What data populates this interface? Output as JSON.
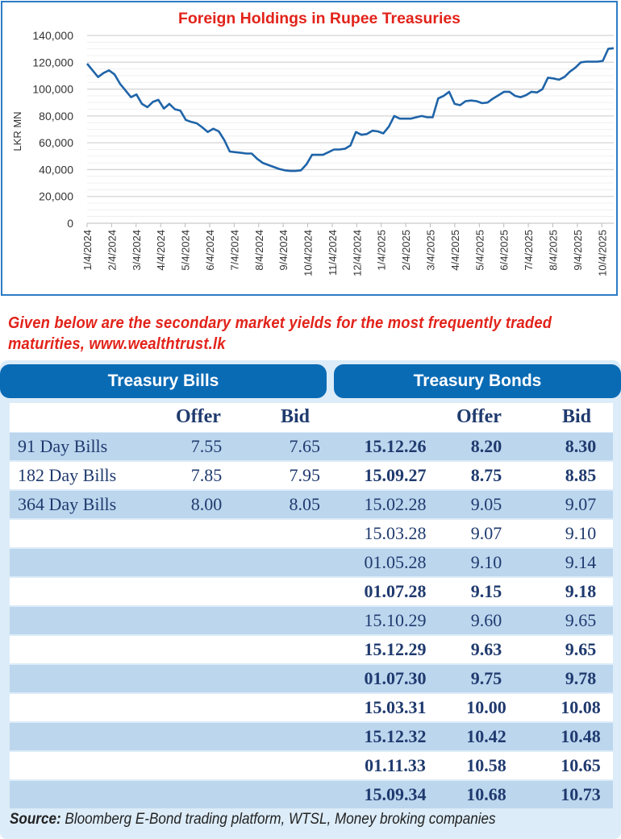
{
  "chart_data": {
    "type": "line",
    "title": "Foreign Holdings in Rupee Treasuries",
    "xlabel": "",
    "ylabel": "LKR MN",
    "ylim": [
      0,
      140000
    ],
    "yticks": [
      0,
      20000,
      40000,
      60000,
      80000,
      100000,
      120000,
      140000
    ],
    "ytick_labels": [
      "0",
      "20,000",
      "40,000",
      "60,000",
      "80,000",
      "100,000",
      "120,000",
      "140,000"
    ],
    "xtick_labels": [
      "1/4/2024",
      "2/4/2024",
      "3/4/2024",
      "4/4/2024",
      "5/4/2024",
      "6/4/2024",
      "7/4/2024",
      "8/4/2024",
      "9/4/2024",
      "10/4/2024",
      "11/4/2024",
      "12/4/2024",
      "1/4/2025",
      "2/4/2025",
      "3/4/2025",
      "4/4/2025",
      "5/4/2025",
      "6/4/2025",
      "7/4/2025",
      "8/4/2025",
      "9/4/2025",
      "10/4/2025"
    ],
    "x_span_months": 21.7,
    "grid": true,
    "legend": "none",
    "color": "#1f64a8",
    "series": [
      {
        "name": "Foreign Holdings",
        "values": [
          119000,
          114000,
          109000,
          112000,
          114000,
          111000,
          104000,
          99000,
          94000,
          96000,
          89000,
          86500,
          90500,
          92000,
          85500,
          89000,
          85000,
          84000,
          77000,
          75500,
          74500,
          71500,
          68000,
          70500,
          68500,
          62000,
          53500,
          53000,
          52500,
          52000,
          52000,
          48000,
          45000,
          43500,
          42000,
          40500,
          39500,
          39000,
          39000,
          39500,
          44000,
          51000,
          51000,
          51000,
          53000,
          55000,
          55000,
          55500,
          58000,
          68000,
          66000,
          66500,
          69000,
          68500,
          67000,
          72000,
          80000,
          78000,
          78000,
          78000,
          79000,
          80000,
          79000,
          79000,
          93000,
          95000,
          98000,
          89000,
          88000,
          91000,
          91500,
          91000,
          89500,
          90000,
          93000,
          95500,
          98000,
          98000,
          95000,
          94000,
          95500,
          98000,
          97500,
          100000,
          108500,
          108000,
          107000,
          109000,
          113000,
          116000,
          120000,
          120500,
          120500,
          120500,
          121000,
          130000,
          130500
        ]
      }
    ]
  },
  "intro_text": "Given below are the secondary market yields for the most frequently traded maturities, www.wealthtrust.lk",
  "bills": {
    "title": "Treasury Bills",
    "offer_label": "Offer",
    "bid_label": "Bid",
    "rows": [
      {
        "name": "91 Day Bills",
        "offer": "7.55",
        "bid": "7.65"
      },
      {
        "name": "182 Day Bills",
        "offer": "7.85",
        "bid": "7.95"
      },
      {
        "name": "364 Day Bills",
        "offer": "8.00",
        "bid": "8.05"
      }
    ]
  },
  "bonds": {
    "title": "Treasury Bonds",
    "offer_label": "Offer",
    "bid_label": "Bid",
    "rows": [
      {
        "maturity": "15.12.26",
        "offer": "8.20",
        "bid": "8.30",
        "bold": true
      },
      {
        "maturity": "15.09.27",
        "offer": "8.75",
        "bid": "8.85",
        "bold": true
      },
      {
        "maturity": "15.02.28",
        "offer": "9.05",
        "bid": "9.07",
        "bold": false
      },
      {
        "maturity": "15.03.28",
        "offer": "9.07",
        "bid": "9.10",
        "bold": false
      },
      {
        "maturity": "01.05.28",
        "offer": "9.10",
        "bid": "9.14",
        "bold": false
      },
      {
        "maturity": "01.07.28",
        "offer": "9.15",
        "bid": "9.18",
        "bold": true
      },
      {
        "maturity": "15.10.29",
        "offer": "9.60",
        "bid": "9.65",
        "bold": false
      },
      {
        "maturity": "15.12.29",
        "offer": "9.63",
        "bid": "9.65",
        "bold": true
      },
      {
        "maturity": "01.07.30",
        "offer": "9.75",
        "bid": "9.78",
        "bold": true
      },
      {
        "maturity": "15.03.31",
        "offer": "10.00",
        "bid": "10.08",
        "bold": true
      },
      {
        "maturity": "15.12.32",
        "offer": "10.42",
        "bid": "10.48",
        "bold": true
      },
      {
        "maturity": "01.11.33",
        "offer": "10.58",
        "bid": "10.65",
        "bold": true
      },
      {
        "maturity": "15.09.34",
        "offer": "10.68",
        "bid": "10.73",
        "bold": true
      }
    ]
  },
  "source": {
    "label": "Source:",
    "text": " Bloomberg E-Bond trading platform, WTSL, Money broking companies"
  }
}
